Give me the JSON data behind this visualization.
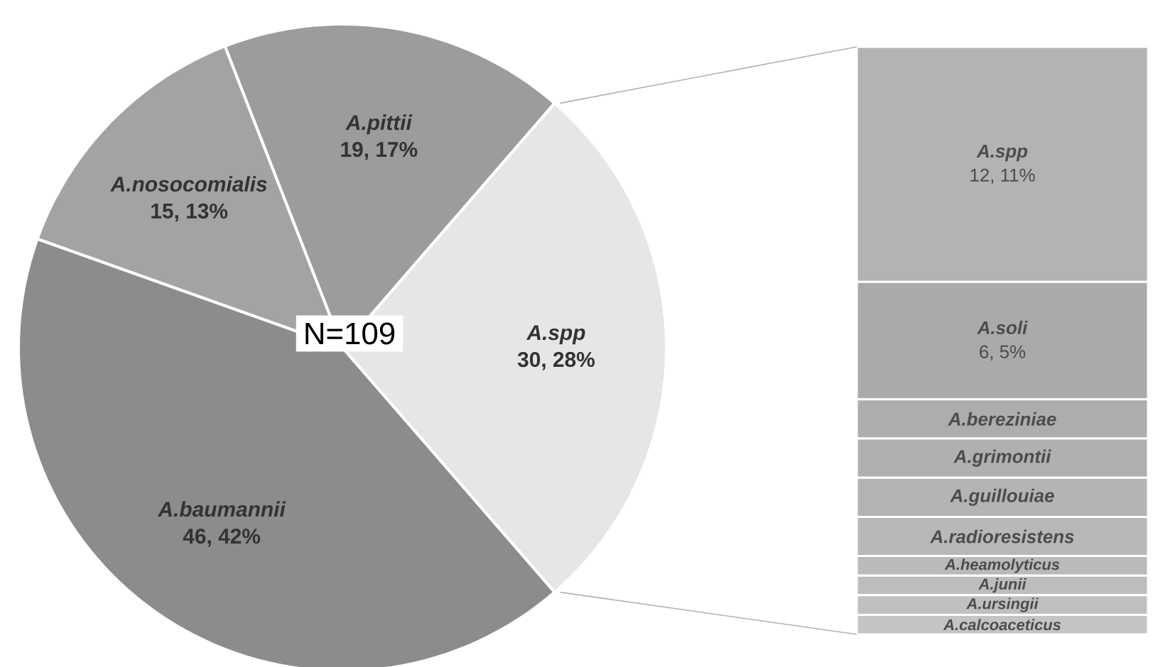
{
  "chart_data": [
    {
      "type": "pie",
      "categories": [
        "A.spp",
        "A.pittii",
        "A.nosocomialis",
        "A.baumannii"
      ],
      "values": [
        30,
        19,
        15,
        46
      ],
      "value_labels": [
        "30, 28%",
        "19, 17%",
        "15, 13%",
        "46, 42%"
      ],
      "colors": [
        "#e6e6e6",
        "#9c9c9c",
        "#a3a3a3",
        "#8c8c8c"
      ],
      "annotations": [
        "N=109"
      ]
    },
    {
      "type": "bar",
      "stacked": true,
      "categories": [
        null
      ],
      "series": [
        {
          "name": "A.calcoaceticus",
          "color": "#c4c4c4",
          "values": [
            1
          ]
        },
        {
          "name": "A.ursingii",
          "color": "#c0c0c0",
          "values": [
            1
          ]
        },
        {
          "name": "A.junii",
          "color": "#bdbdbd",
          "values": [
            1
          ]
        },
        {
          "name": "A.heamolyticus",
          "color": "#bababa",
          "values": [
            1
          ]
        },
        {
          "name": "A.radioresistens",
          "color": "#b8b8b8",
          "values": [
            2
          ]
        },
        {
          "name": "A.guillouiae",
          "color": "#b4b4b4",
          "values": [
            2
          ]
        },
        {
          "name": "A.grimontii",
          "color": "#b0b0b0",
          "values": [
            2
          ]
        },
        {
          "name": "A.bereziniae",
          "color": "#adadad",
          "values": [
            2
          ]
        },
        {
          "name": "A.soli",
          "color": "#aaaaaa",
          "values": [
            6
          ],
          "value_labels": [
            "6, 5%"
          ]
        },
        {
          "name": "A.spp",
          "color": "#b3b3b3",
          "values": [
            12
          ],
          "value_labels": [
            "12, 11%"
          ]
        }
      ]
    }
  ]
}
